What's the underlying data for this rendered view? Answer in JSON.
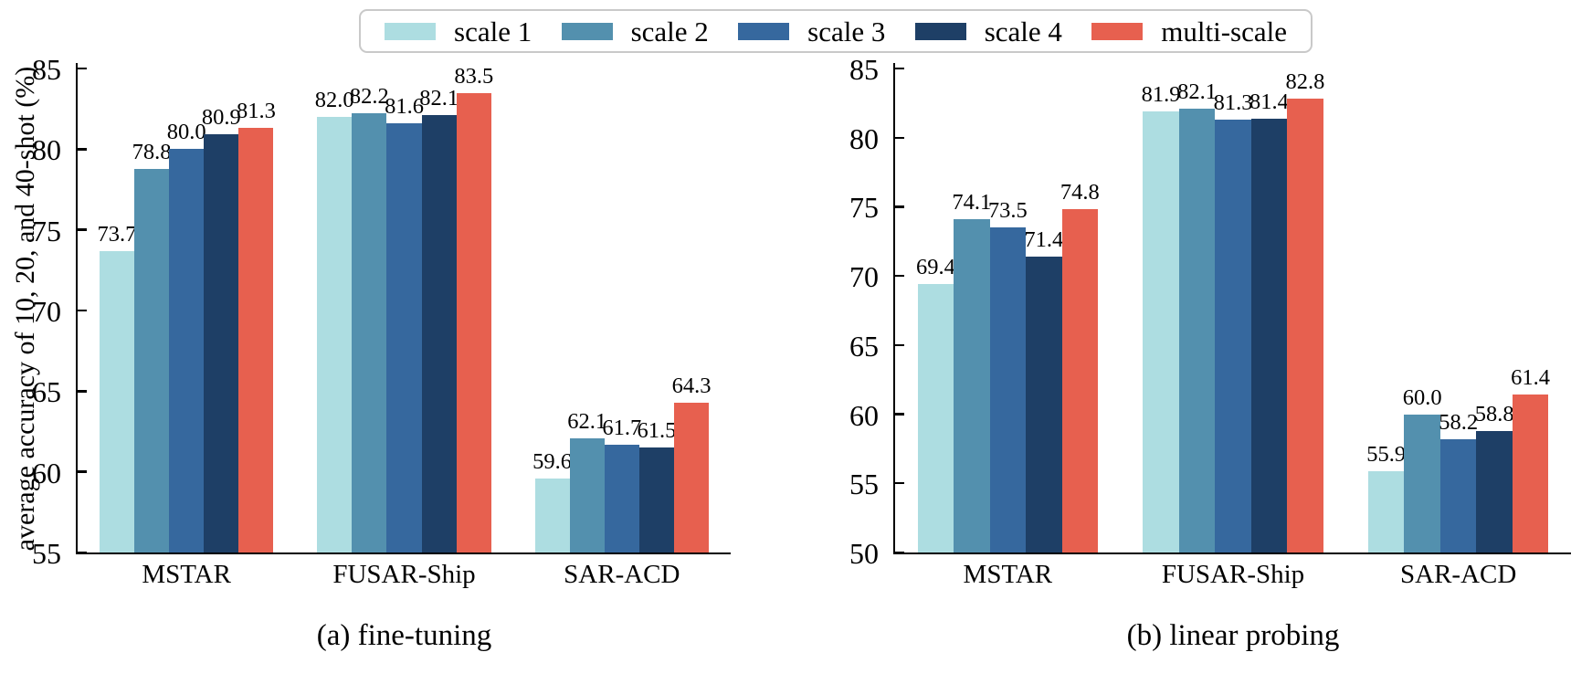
{
  "legend": {
    "items": [
      {
        "label": "scale 1",
        "color": "#addde1"
      },
      {
        "label": "scale 2",
        "color": "#5390ae"
      },
      {
        "label": "scale 3",
        "color": "#36689e"
      },
      {
        "label": "scale 4",
        "color": "#1e3f66"
      },
      {
        "label": "multi-scale",
        "color": "#e7604f"
      }
    ],
    "border_color": "#c9c9c9"
  },
  "chart_data": [
    {
      "type": "bar",
      "panel_label": "(a) fine-tuning",
      "ylabel": "average accuracy of 10, 20, and 40-shot (%)",
      "xlabel": "",
      "ylim": [
        55,
        85
      ],
      "yticks": [
        55,
        60,
        65,
        70,
        75,
        80,
        85
      ],
      "grid": false,
      "legend_position": "shared top center",
      "categories": [
        "MSTAR",
        "FUSAR-Ship",
        "SAR-ACD"
      ],
      "series": [
        {
          "name": "scale 1",
          "color": "#addde1",
          "values": [
            73.7,
            82.0,
            59.6
          ]
        },
        {
          "name": "scale 2",
          "color": "#5390ae",
          "values": [
            78.8,
            82.2,
            62.1
          ]
        },
        {
          "name": "scale 3",
          "color": "#36689e",
          "values": [
            80.0,
            81.6,
            61.7
          ]
        },
        {
          "name": "scale 4",
          "color": "#1e3f66",
          "values": [
            80.9,
            82.1,
            61.5
          ]
        },
        {
          "name": "multi-scale",
          "color": "#e7604f",
          "values": [
            81.3,
            83.5,
            64.3
          ]
        }
      ]
    },
    {
      "type": "bar",
      "panel_label": "(b) linear probing",
      "ylabel": "",
      "xlabel": "",
      "ylim": [
        50,
        85
      ],
      "yticks": [
        50,
        55,
        60,
        65,
        70,
        75,
        80,
        85
      ],
      "grid": false,
      "legend_position": "shared top center",
      "categories": [
        "MSTAR",
        "FUSAR-Ship",
        "SAR-ACD"
      ],
      "series": [
        {
          "name": "scale 1",
          "color": "#addde1",
          "values": [
            69.4,
            81.9,
            55.9
          ]
        },
        {
          "name": "scale 2",
          "color": "#5390ae",
          "values": [
            74.1,
            82.1,
            60.0
          ]
        },
        {
          "name": "scale 3",
          "color": "#36689e",
          "values": [
            73.5,
            81.3,
            58.2
          ]
        },
        {
          "name": "scale 4",
          "color": "#1e3f66",
          "values": [
            71.4,
            81.4,
            58.8
          ]
        },
        {
          "name": "multi-scale",
          "color": "#e7604f",
          "values": [
            74.8,
            82.8,
            61.4
          ]
        }
      ]
    }
  ]
}
